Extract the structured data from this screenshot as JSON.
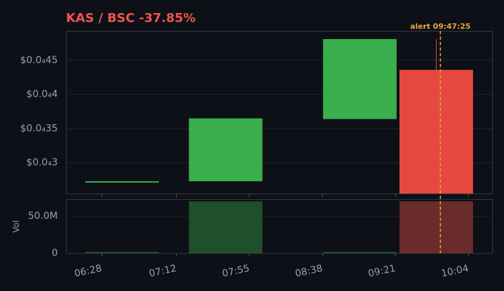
{
  "chart_data": {
    "type": "candlestick",
    "title": "KAS / BSC  -37.85%",
    "x": [
      "06:40",
      "07:41",
      "09:00",
      "09:45"
    ],
    "open": [
      2.72e-05,
      2.73e-05,
      3.64e-05,
      4.36e-05
    ],
    "high": [
      2.73e-05,
      3.65e-05,
      4.81e-05,
      4.81e-05
    ],
    "low": [
      2.72e-05,
      2.73e-05,
      3.64e-05,
      2.55e-05
    ],
    "close": [
      2.73e-05,
      3.65e-05,
      4.81e-05,
      2.55e-05
    ],
    "volume": [
      0,
      70000000,
      500000,
      70000000
    ],
    "up_color": "#3aae4c",
    "down_color": "#e5493f",
    "volume_up_color": "#1f4f2b",
    "volume_down_color": "#6a2b2b",
    "xlim": [
      "06:07",
      "10:18"
    ],
    "xticks": [
      "06:28",
      "07:12",
      "07:55",
      "08:38",
      "09:21",
      "10:04"
    ],
    "ylim": [
      2.55e-05,
      4.93e-05
    ],
    "yticks": [
      {
        "value": 3e-05,
        "label": "$0.0₄3"
      },
      {
        "value": 3.5e-05,
        "label": "$0.0₄35"
      },
      {
        "value": 4e-05,
        "label": "$0.0₄4"
      },
      {
        "value": 4.5e-05,
        "label": "$0.0₄45"
      }
    ],
    "y2label": "Vol",
    "y2lim": [
      0,
      73100000
    ],
    "y2ticks": [
      0,
      {
        "value": 50000000,
        "label": "50.0M"
      }
    ],
    "grid": true,
    "annotation": {
      "x": "09:47:25",
      "label": "alert 09:47:25",
      "color": "#e8a33a"
    }
  }
}
